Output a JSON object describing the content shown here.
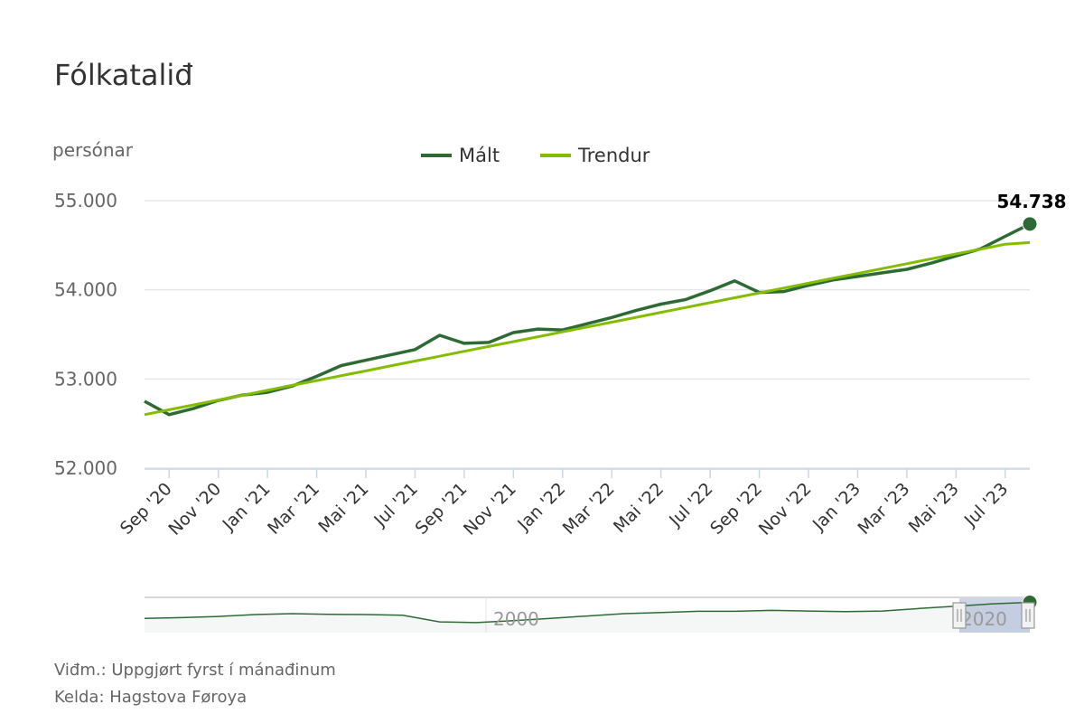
{
  "title": "Fólkataliđ",
  "footnotes": {
    "note": "Viđm.: Uppgjørt fyrst í mánađinum",
    "source": "Kelda: Hagstova Føroya"
  },
  "colors": {
    "measured": "#2e6b34",
    "trend": "#84bd00",
    "grid": "#e6e6e6",
    "axis_text": "#666666",
    "navigator_mask": "#c5cde6"
  },
  "chart_data": {
    "type": "line",
    "ylabel": "persónar",
    "ylim": [
      52000,
      55000
    ],
    "yticks": [
      52000,
      53000,
      54000,
      55000
    ],
    "ytick_labels": [
      "52.000",
      "53.000",
      "54.000",
      "55.000"
    ],
    "x": [
      "2020-08",
      "2020-09",
      "2020-10",
      "2020-11",
      "2020-12",
      "2021-01",
      "2021-02",
      "2021-03",
      "2021-04",
      "2021-05",
      "2021-06",
      "2021-07",
      "2021-08",
      "2021-09",
      "2021-10",
      "2021-11",
      "2021-12",
      "2022-01",
      "2022-02",
      "2022-03",
      "2022-04",
      "2022-05",
      "2022-06",
      "2022-07",
      "2022-08",
      "2022-09",
      "2022-10",
      "2022-11",
      "2022-12",
      "2023-01",
      "2023-02",
      "2023-03",
      "2023-04",
      "2023-05",
      "2023-06",
      "2023-07",
      "2023-08"
    ],
    "xtick_labels": [
      {
        "x": "2020-09",
        "label": "Sep '20"
      },
      {
        "x": "2020-11",
        "label": "Nov '20"
      },
      {
        "x": "2021-01",
        "label": "Jan '21"
      },
      {
        "x": "2021-03",
        "label": "Mar '21"
      },
      {
        "x": "2021-05",
        "label": "Mai '21"
      },
      {
        "x": "2021-07",
        "label": "Jul '21"
      },
      {
        "x": "2021-09",
        "label": "Sep '21"
      },
      {
        "x": "2021-11",
        "label": "Nov '21"
      },
      {
        "x": "2022-01",
        "label": "Jan '22"
      },
      {
        "x": "2022-03",
        "label": "Mar '22"
      },
      {
        "x": "2022-05",
        "label": "Mai '22"
      },
      {
        "x": "2022-07",
        "label": "Jul '22"
      },
      {
        "x": "2022-09",
        "label": "Sep '22"
      },
      {
        "x": "2022-11",
        "label": "Nov '22"
      },
      {
        "x": "2023-01",
        "label": "Jan '23"
      },
      {
        "x": "2023-03",
        "label": "Mar '23"
      },
      {
        "x": "2023-05",
        "label": "Mai '23"
      },
      {
        "x": "2023-07",
        "label": "Jul '23"
      }
    ],
    "series": [
      {
        "name": "Mált",
        "values": [
          52750,
          52600,
          52670,
          52760,
          52820,
          52850,
          52920,
          53030,
          53150,
          53210,
          53270,
          53330,
          53490,
          53400,
          53410,
          53520,
          53560,
          53550,
          53620,
          53690,
          53770,
          53840,
          53890,
          53990,
          54100,
          53970,
          53980,
          54050,
          54110,
          54150,
          54190,
          54230,
          54300,
          54380,
          54460,
          54600,
          54738
        ]
      },
      {
        "name": "Trendur",
        "values": [
          52600,
          52655,
          52709,
          52764,
          52818,
          52873,
          52928,
          52982,
          53037,
          53091,
          53146,
          53201,
          53255,
          53310,
          53364,
          53419,
          53474,
          53528,
          53583,
          53637,
          53692,
          53747,
          53801,
          53856,
          53910,
          53965,
          54020,
          54074,
          54129,
          54183,
          54238,
          54293,
          54347,
          54402,
          54456,
          54511,
          54530
        ]
      }
    ],
    "last_point_label": "54.738",
    "legend": "top-center",
    "grid": true,
    "navigator": {
      "label_left": "2000",
      "label_right": "2020",
      "profile": [
        0.3,
        0.33,
        0.38,
        0.46,
        0.5,
        0.47,
        0.46,
        0.43,
        0.15,
        0.12,
        0.2,
        0.3,
        0.4,
        0.5,
        0.55,
        0.6,
        0.6,
        0.64,
        0.61,
        0.59,
        0.61,
        0.72,
        0.82,
        0.92,
        0.98
      ]
    }
  }
}
